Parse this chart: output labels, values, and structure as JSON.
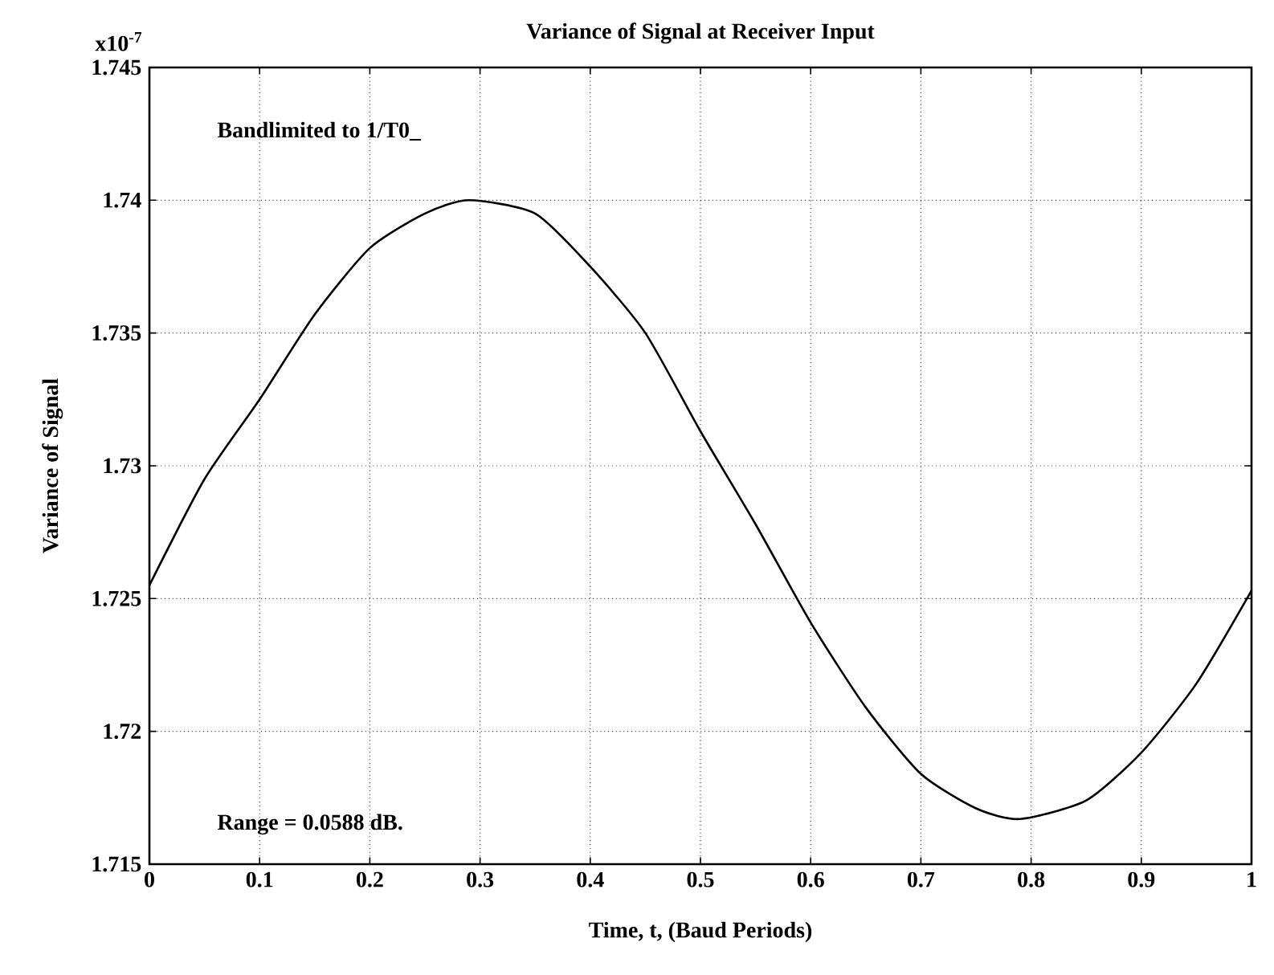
{
  "chart_data": {
    "type": "line",
    "title": "Variance of Signal at Receiver Input",
    "xlabel": "Time, t, (Baud Periods)",
    "ylabel": "Variance of Signal",
    "annotations": [
      "x10$^{-7}$",
      "Bandlimited to 1/T0_",
      "Range = 0.0588 dB."
    ],
    "x": [
      0,
      0.05,
      0.1,
      0.15,
      0.2,
      0.25,
      0.29,
      0.35,
      0.4,
      0.45,
      0.5,
      0.55,
      0.6,
      0.65,
      0.7,
      0.75,
      0.79,
      0.85,
      0.9,
      0.95,
      1.0
    ],
    "series": [
      {
        "color": "#000000",
        "values": [
          1.7255,
          1.7295,
          1.7325,
          1.7357,
          1.7382,
          1.7395,
          1.74,
          1.7395,
          1.7375,
          1.735,
          1.7313,
          1.7278,
          1.7241,
          1.7209,
          1.7184,
          1.7171,
          1.7167,
          1.7174,
          1.7192,
          1.7218,
          1.7253
        ]
      }
    ],
    "xlim": [
      0,
      1
    ],
    "ylim": [
      1.715,
      1.745
    ],
    "xticks": [
      0,
      0.1,
      0.2,
      0.3,
      0.4,
      0.5,
      0.6,
      0.7,
      0.8,
      0.9,
      1
    ],
    "yticks": [
      1.715,
      1.72,
      1.725,
      1.73,
      1.735,
      1.74,
      1.745
    ],
    "grid": true,
    "line_style": "solid",
    "marker": "none"
  }
}
